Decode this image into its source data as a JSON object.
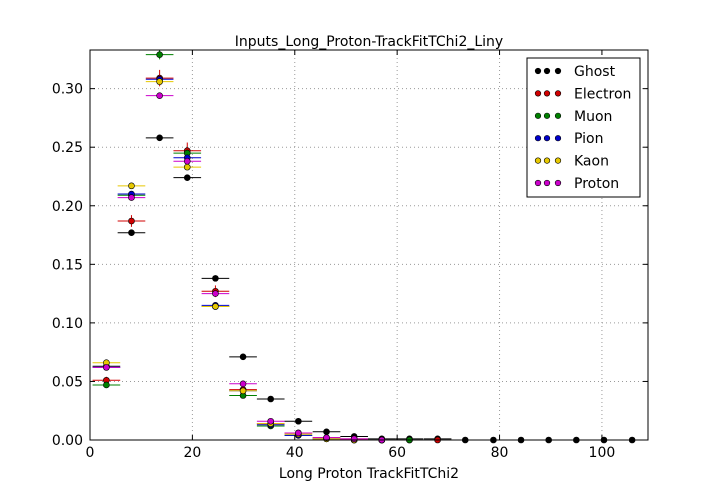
{
  "chart_data": {
    "type": "scatter",
    "title": "Inputs_Long_Proton-TrackFitTChi2_Liny",
    "xlabel": "Long Proton TrackFitTChi2",
    "ylabel": "",
    "xlim": [
      0,
      109
    ],
    "ylim": [
      0,
      0.333
    ],
    "xticks": [
      0,
      20,
      40,
      60,
      80,
      100
    ],
    "yticks": [
      0.0,
      0.05,
      0.1,
      0.15,
      0.2,
      0.25,
      0.3
    ],
    "xtick_labels": [
      "0",
      "20",
      "40",
      "60",
      "80",
      "100"
    ],
    "ytick_labels": [
      "0.00",
      "0.05",
      "0.10",
      "0.15",
      "0.20",
      "0.25",
      "0.30"
    ],
    "grid": true,
    "legend_position": "top-right",
    "bin_half_width": 2.7,
    "series": [
      {
        "name": "Ghost",
        "color": "#000000",
        "x": [
          3.2,
          8.1,
          13.6,
          19.0,
          24.5,
          29.9,
          35.3,
          40.7,
          46.2,
          51.6,
          57.0,
          62.4,
          67.9,
          73.3,
          78.8,
          84.2,
          89.6,
          95.0,
          100.4,
          105.9
        ],
        "y": [
          0.063,
          0.177,
          0.258,
          0.224,
          0.138,
          0.071,
          0.035,
          0.016,
          0.007,
          0.003,
          0.001,
          0.001,
          0.001,
          0.0,
          0.0,
          0.0,
          0.0,
          0.0,
          0.0,
          0.0
        ],
        "yerr": [
          0.001,
          0.001,
          0.001,
          0.001,
          0.001,
          0.001,
          0.001,
          0.001,
          0.0005,
          0.0003,
          0.0002,
          0.0002,
          0.0001,
          0,
          0,
          0,
          0,
          0,
          0,
          0
        ]
      },
      {
        "name": "Electron",
        "color": "#d00000",
        "x": [
          3.2,
          8.1,
          13.6,
          19.0,
          24.5,
          29.9,
          35.3,
          40.7,
          46.2,
          51.6,
          57.0,
          62.4,
          67.9
        ],
        "y": [
          0.051,
          0.187,
          0.309,
          0.247,
          0.127,
          0.043,
          0.014,
          0.006,
          0.002,
          0.001,
          0.0,
          0.0,
          0.0
        ],
        "yerr": [
          0.003,
          0.005,
          0.007,
          0.007,
          0.005,
          0.003,
          0.002,
          0.001,
          0.001,
          0.0005,
          0,
          0,
          0
        ]
      },
      {
        "name": "Muon",
        "color": "#008000",
        "x": [
          3.2,
          8.1,
          13.6,
          19.0,
          24.5,
          29.9,
          35.3,
          40.7,
          46.2,
          51.6,
          57.0,
          62.4
        ],
        "y": [
          0.047,
          0.209,
          0.329,
          0.245,
          0.114,
          0.038,
          0.012,
          0.004,
          0.001,
          0.0,
          0.0,
          0.0
        ],
        "yerr": [
          0.002,
          0.003,
          0.004,
          0.003,
          0.002,
          0.002,
          0.001,
          0.001,
          0.0005,
          0,
          0,
          0
        ]
      },
      {
        "name": "Pion",
        "color": "#0000cc",
        "x": [
          3.2,
          8.1,
          13.6,
          19.0,
          24.5,
          29.9,
          35.3,
          40.7,
          46.2,
          51.6,
          57.0
        ],
        "y": [
          0.062,
          0.21,
          0.308,
          0.241,
          0.115,
          0.042,
          0.013,
          0.004,
          0.001,
          0.0,
          0.0
        ],
        "yerr": [
          0.001,
          0.001,
          0.001,
          0.001,
          0.001,
          0.001,
          0.0005,
          0.0003,
          0.0002,
          0,
          0
        ]
      },
      {
        "name": "Kaon",
        "color": "#e6c800",
        "x": [
          3.2,
          8.1,
          13.6,
          19.0,
          24.5,
          29.9,
          35.3,
          40.7,
          46.2,
          51.6,
          57.0
        ],
        "y": [
          0.066,
          0.217,
          0.306,
          0.233,
          0.114,
          0.042,
          0.014,
          0.005,
          0.001,
          0.0,
          0.0
        ],
        "yerr": [
          0.001,
          0.001,
          0.002,
          0.001,
          0.001,
          0.001,
          0.0005,
          0.0003,
          0.0002,
          0,
          0
        ]
      },
      {
        "name": "Proton",
        "color": "#cc00cc",
        "x": [
          3.2,
          8.1,
          13.6,
          19.0,
          24.5,
          29.9,
          35.3,
          40.7,
          46.2,
          51.6,
          57.0
        ],
        "y": [
          0.062,
          0.207,
          0.294,
          0.238,
          0.125,
          0.048,
          0.016,
          0.006,
          0.002,
          0.001,
          0.0
        ],
        "yerr": [
          0.001,
          0.001,
          0.001,
          0.001,
          0.001,
          0.001,
          0.0005,
          0.0003,
          0.0002,
          0.0001,
          0
        ]
      }
    ]
  }
}
